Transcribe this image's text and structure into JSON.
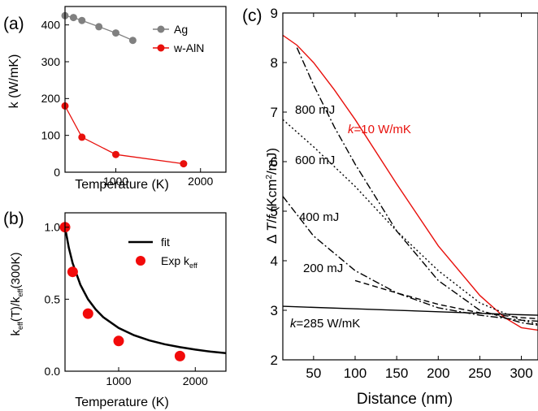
{
  "chart_data": [
    {
      "panel_label": "(a)",
      "type": "line",
      "xlabel": "Temperature (K)",
      "ylabel": "k (W/mK)",
      "xlim": [
        400,
        2300
      ],
      "ylim": [
        0,
        450
      ],
      "xticks": [
        1000,
        2000
      ],
      "yticks": [
        0,
        100,
        200,
        300,
        400
      ],
      "legend": "top-right",
      "series": [
        {
          "name": "Ag",
          "color": "#808080",
          "x": [
            400,
            500,
            600,
            800,
            1000,
            1200
          ],
          "y": [
            425,
            420,
            412,
            395,
            378,
            358
          ]
        },
        {
          "name": "w-AlN",
          "color": "#e8100c",
          "x": [
            400,
            600,
            1000,
            1800
          ],
          "y": [
            180,
            95,
            48,
            23
          ]
        }
      ]
    },
    {
      "panel_label": "(b)",
      "type": "scatter",
      "xlabel": "Temperature (K)",
      "ylabel": "keff(T)/keff(300K)",
      "xlim": [
        300,
        2400
      ],
      "ylim": [
        0,
        1.1
      ],
      "xticks": [
        1000,
        2000
      ],
      "yticks": [
        0.0,
        0.5,
        1.0
      ],
      "legend": "top-right",
      "series": [
        {
          "name": "fit",
          "color": "#000000",
          "style": "line",
          "x": [
            300,
            350,
            400,
            500,
            600,
            700,
            800,
            1000,
            1200,
            1400,
            1600,
            1800,
            2000,
            2200,
            2400
          ],
          "y": [
            1.0,
            0.857,
            0.75,
            0.6,
            0.5,
            0.429,
            0.375,
            0.3,
            0.25,
            0.214,
            0.1875,
            0.167,
            0.15,
            0.136,
            0.125
          ]
        },
        {
          "name": "Exp keff",
          "color": "#f20a0a",
          "style": "markers",
          "x": [
            300,
            400,
            600,
            1000,
            1800
          ],
          "y": [
            1.0,
            0.69,
            0.4,
            0.21,
            0.105
          ]
        }
      ]
    },
    {
      "panel_label": "(c)",
      "type": "line",
      "xlabel": "Distance (nm)",
      "ylabel": "ΔT/f (Kcm²/mJ)",
      "xlim": [
        13,
        320
      ],
      "ylim": [
        2,
        9
      ],
      "xticks": [
        50,
        100,
        150,
        200,
        250,
        300
      ],
      "yticks": [
        2,
        3,
        4,
        5,
        6,
        7,
        8,
        9
      ],
      "series": [
        {
          "name": "k=10 W/mK",
          "color": "#e8100c",
          "style": "solid",
          "x": [
            13,
            30,
            50,
            75,
            100,
            150,
            200,
            250,
            280,
            300,
            320
          ],
          "y": [
            8.55,
            8.35,
            8.0,
            7.45,
            6.85,
            5.55,
            4.3,
            3.3,
            2.85,
            2.65,
            2.6
          ]
        },
        {
          "name": "800 mJ",
          "color": "#000000",
          "style": "dashdot",
          "x": [
            30,
            50,
            75,
            100,
            150,
            200,
            250,
            300,
            320
          ],
          "y": [
            8.3,
            7.55,
            6.7,
            5.95,
            4.6,
            3.6,
            3.0,
            2.75,
            2.7
          ]
        },
        {
          "name": "600 mJ",
          "color": "#000000",
          "style": "dotted",
          "x": [
            13,
            50,
            100,
            150,
            200,
            250,
            300,
            320
          ],
          "y": [
            6.85,
            6.3,
            5.5,
            4.6,
            3.8,
            3.15,
            2.8,
            2.72
          ]
        },
        {
          "name": "400 mJ",
          "color": "#000000",
          "style": "dashdot",
          "x": [
            13,
            50,
            100,
            150,
            200,
            250,
            300,
            320
          ],
          "y": [
            5.3,
            4.5,
            3.8,
            3.35,
            3.05,
            2.9,
            2.8,
            2.78
          ]
        },
        {
          "name": "200 mJ",
          "color": "#000000",
          "style": "dashed",
          "x": [
            100,
            150,
            200,
            250,
            300,
            320
          ],
          "y": [
            3.6,
            3.35,
            3.12,
            2.95,
            2.85,
            2.83
          ]
        },
        {
          "name": "k=285 W/mK",
          "color": "#000000",
          "style": "solid",
          "x": [
            13,
            100,
            200,
            300,
            320
          ],
          "y": [
            3.08,
            3.03,
            2.97,
            2.91,
            2.9
          ]
        }
      ],
      "annotations": [
        "800 mJ",
        "600 mJ",
        "400 mJ",
        "200 mJ",
        "k=10 W/mK",
        "k=285 W/mK"
      ]
    }
  ]
}
